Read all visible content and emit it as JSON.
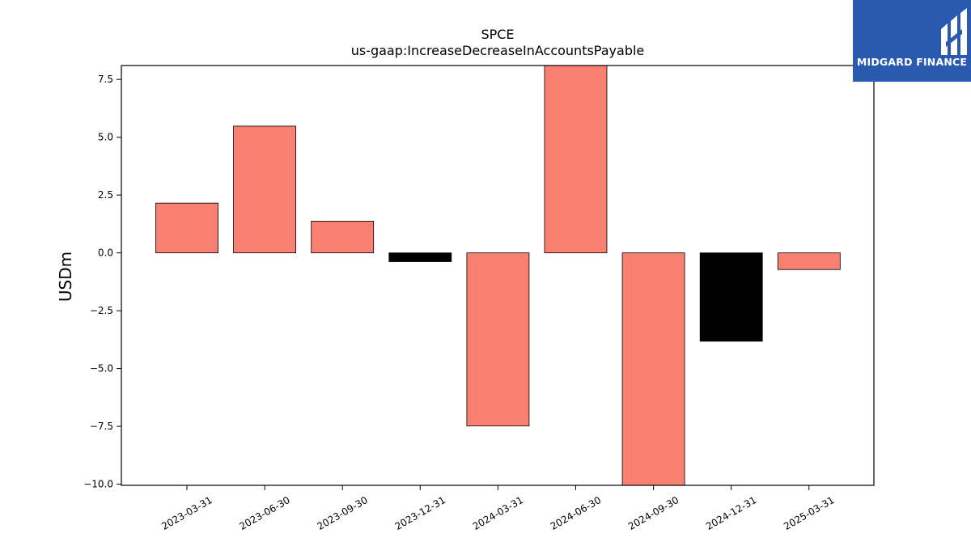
{
  "brand": {
    "name": "MIDGARD FINANCE",
    "bg_color": "#2a5ab0"
  },
  "chart_data": {
    "type": "bar",
    "title": "SPCE",
    "subtitle": "us-gaap:IncreaseDecreaseInAccountsPayable",
    "xlabel": "",
    "ylabel": "USDm",
    "categories": [
      "2023-03-31",
      "2023-06-30",
      "2023-09-30",
      "2023-12-31",
      "2024-03-31",
      "2024-06-30",
      "2024-09-30",
      "2024-12-31",
      "2025-03-31"
    ],
    "values": [
      2.15,
      5.48,
      1.37,
      -0.38,
      -7.48,
      8.1,
      -10.05,
      -3.82,
      -0.72
    ],
    "bar_colors": [
      "#fa8072",
      "#fa8072",
      "#fa8072",
      "#000000",
      "#fa8072",
      "#fa8072",
      "#fa8072",
      "#000000",
      "#fa8072"
    ],
    "ylim": [
      -10.05,
      8.1
    ],
    "yticks": [
      7.5,
      5.0,
      2.5,
      0.0,
      -2.5,
      -5.0,
      -7.5,
      -10.0
    ],
    "ytick_labels": [
      "7.5",
      "5.0",
      "2.5",
      "0.0",
      "−2.5",
      "−5.0",
      "−7.5",
      "−10.0"
    ],
    "grid": false
  }
}
